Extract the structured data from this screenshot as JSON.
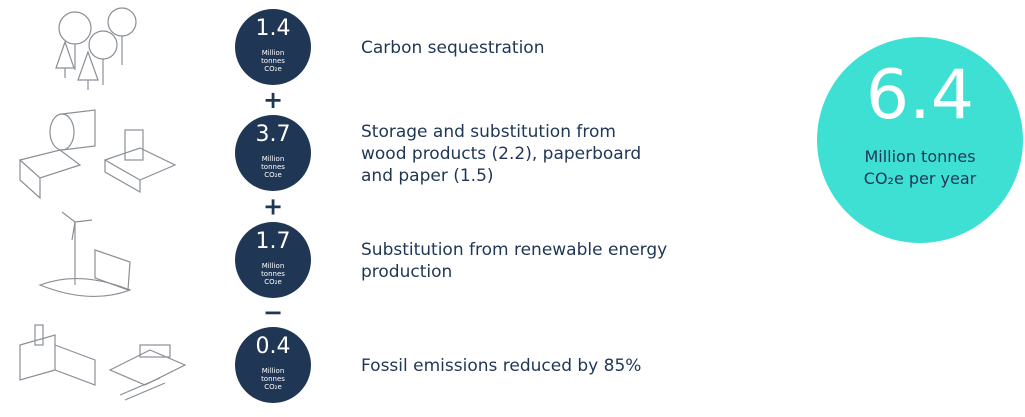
{
  "items": [
    {
      "value": 1.4,
      "unit": [
        "Million",
        "tonnes",
        "CO₂e"
      ],
      "description": [
        "Carbon sequestration"
      ],
      "operator": "+"
    },
    {
      "value": 3.7,
      "unit": [
        "Million",
        "tonnes",
        "CO₂e"
      ],
      "description": [
        "Storage and substitution from",
        "wood products (2.2), paperboard",
        "and paper (1.5)"
      ],
      "operator": "+"
    },
    {
      "value": 1.7,
      "unit": [
        "Million",
        "tonnes",
        "CO₂e"
      ],
      "description": [
        "Substitution from renewable energy",
        "production"
      ],
      "operator": "−"
    },
    {
      "value": 0.4,
      "unit": [
        "Million",
        "tonnes",
        "CO₂e"
      ],
      "description": [
        "Fossil emissions reduced by 85%"
      ]
    }
  ],
  "total": {
    "value": 6.4,
    "unit": [
      "Million tonnes",
      "CO₂e per year"
    ]
  }
}
